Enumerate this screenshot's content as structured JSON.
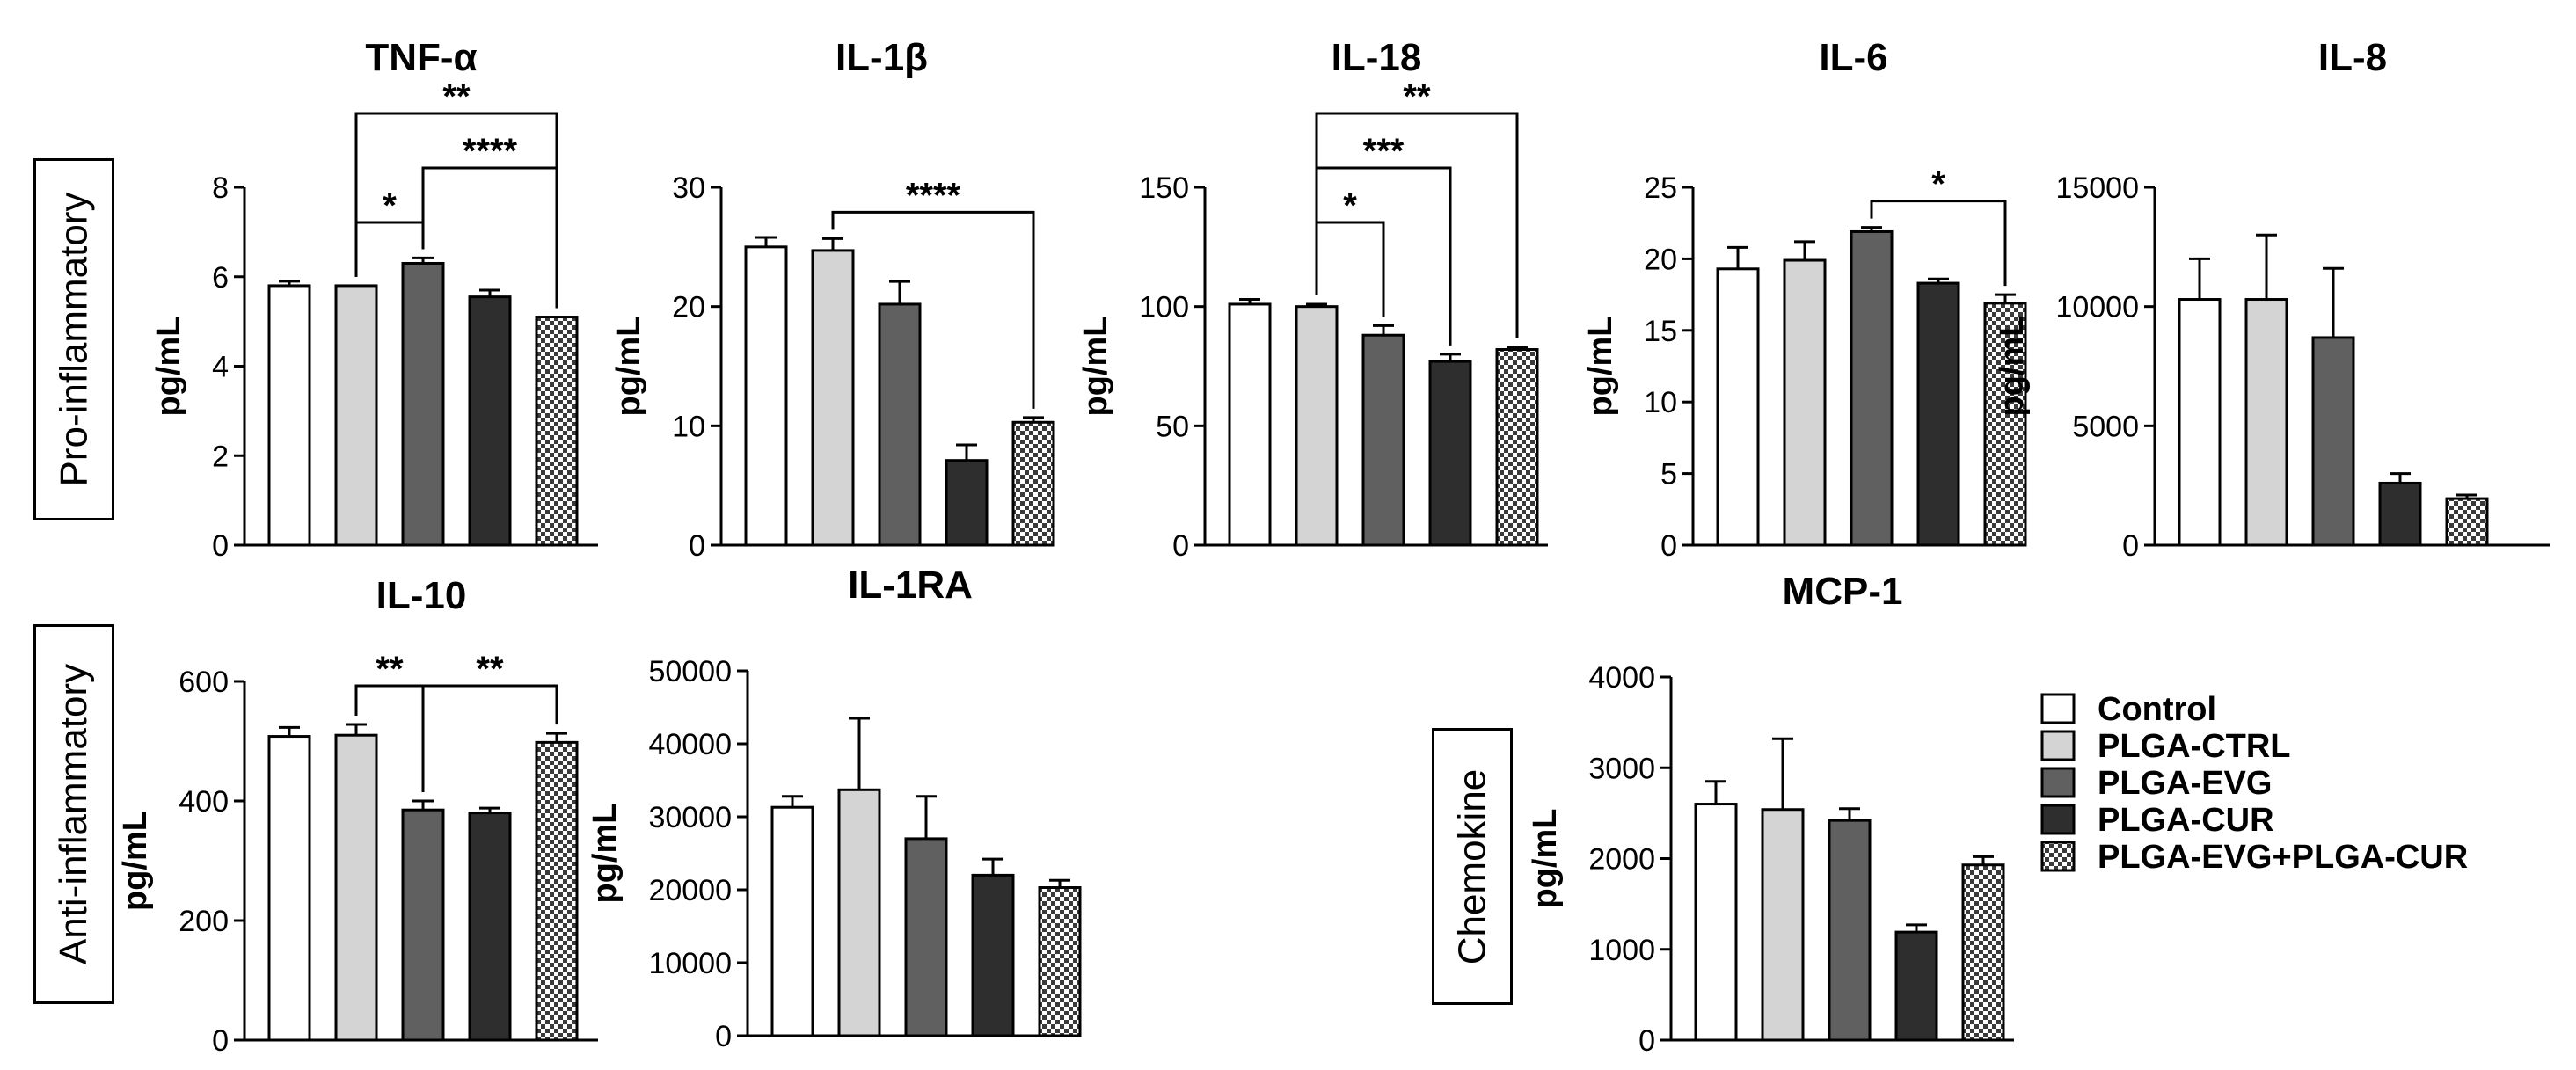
{
  "figure": {
    "row_labels": {
      "pro": "Pro-inflammatory",
      "anti": "Anti-inflammatory",
      "chemokine": "Chemokine"
    },
    "group_fills": {
      "Control": "#ffffff",
      "PLGA-CTRL": "#d4d4d4",
      "PLGA-EVG": "#606060",
      "PLGA-CUR": "#2e2e2e",
      "PLGA-EVG+PLGA-CUR": "checker"
    },
    "legend": [
      "Control",
      "PLGA-CTRL",
      "PLGA-EVG",
      "PLGA-CUR",
      "PLGA-EVG+PLGA-CUR"
    ]
  },
  "chart_data": [
    {
      "type": "bar",
      "title": "TNF-α",
      "ylabel": "pg/mL",
      "categories": [
        "Control",
        "PLGA-CTRL",
        "PLGA-EVG",
        "PLGA-CUR",
        "PLGA-EVG+PLGA-CUR"
      ],
      "values": [
        5.8,
        5.8,
        6.3,
        5.55,
        5.1
      ],
      "errors": [
        0.1,
        0,
        0.12,
        0.15,
        0
      ],
      "ylim": [
        0,
        8
      ],
      "yticks": [
        "0",
        "2",
        "4",
        "6",
        "8"
      ],
      "significance": [
        {
          "from": 1,
          "to": 2,
          "label": "*"
        },
        {
          "from": 2,
          "to": 4,
          "label": "****"
        },
        {
          "from": 1,
          "to": 4,
          "label": "**"
        }
      ]
    },
    {
      "type": "bar",
      "title": "IL-1β",
      "ylabel": "pg/mL",
      "categories": [
        "Control",
        "PLGA-CTRL",
        "PLGA-EVG",
        "PLGA-CUR",
        "PLGA-EVG+PLGA-CUR"
      ],
      "values": [
        25,
        24.7,
        20.2,
        7.1,
        10.3
      ],
      "errors": [
        0.8,
        1.0,
        1.9,
        1.3,
        0.4
      ],
      "ylim": [
        0,
        30
      ],
      "yticks": [
        "0",
        "10",
        "20",
        "30"
      ],
      "significance": [
        {
          "from": 1,
          "to": 4,
          "label": "****"
        }
      ]
    },
    {
      "type": "bar",
      "title": "IL-18",
      "ylabel": "pg/mL",
      "categories": [
        "Control",
        "PLGA-CTRL",
        "PLGA-EVG",
        "PLGA-CUR",
        "PLGA-EVG+PLGA-CUR"
      ],
      "values": [
        101,
        100,
        88,
        77,
        82
      ],
      "errors": [
        2,
        1,
        4,
        3,
        1
      ],
      "ylim": [
        0,
        150
      ],
      "yticks": [
        "0",
        "50",
        "100",
        "150"
      ],
      "significance": [
        {
          "from": 1,
          "to": 2,
          "label": "*"
        },
        {
          "from": 1,
          "to": 3,
          "label": "***"
        },
        {
          "from": 1,
          "to": 4,
          "label": "**"
        }
      ]
    },
    {
      "type": "bar",
      "title": "IL-6",
      "ylabel": "pg/mL",
      "categories": [
        "Control",
        "PLGA-CTRL",
        "PLGA-EVG",
        "PLGA-CUR",
        "PLGA-EVG+PLGA-CUR"
      ],
      "values": [
        19.3,
        19.9,
        21.9,
        18.3,
        16.9
      ],
      "errors": [
        1.5,
        1.3,
        0.3,
        0.3,
        0.6
      ],
      "ylim": [
        0,
        25
      ],
      "yticks": [
        "0",
        "5",
        "10",
        "15",
        "20",
        "25"
      ],
      "significance": [
        {
          "from": 2,
          "to": 4,
          "label": "*"
        }
      ]
    },
    {
      "type": "bar",
      "title": "IL-8",
      "ylabel": "pg/mL",
      "categories": [
        "Control",
        "PLGA-CTRL",
        "PLGA-EVG",
        "PLGA-CUR",
        "PLGA-EVG+PLGA-CUR"
      ],
      "values": [
        10300,
        10300,
        8700,
        2600,
        1950
      ],
      "errors": [
        1700,
        2700,
        2900,
        400,
        150
      ],
      "ylim": [
        0,
        15000
      ],
      "yticks": [
        "0",
        "5000",
        "10000",
        "15000"
      ],
      "significance": []
    },
    {
      "type": "bar",
      "title": "IL-10",
      "ylabel": "pg/mL",
      "categories": [
        "Control",
        "PLGA-CTRL",
        "PLGA-EVG",
        "PLGA-CUR",
        "PLGA-EVG+PLGA-CUR"
      ],
      "values": [
        508,
        510,
        385,
        380,
        498
      ],
      "errors": [
        15,
        18,
        15,
        8,
        15
      ],
      "ylim": [
        0,
        600
      ],
      "yticks": [
        "0",
        "200",
        "400",
        "600"
      ],
      "significance": [
        {
          "from": 1,
          "to": 2,
          "label": "**"
        },
        {
          "from": 2,
          "to": 4,
          "label": "**"
        }
      ]
    },
    {
      "type": "bar",
      "title": "IL-1RA",
      "ylabel": "pg/mL",
      "categories": [
        "Control",
        "PLGA-CTRL",
        "PLGA-EVG",
        "PLGA-CUR",
        "PLGA-EVG+PLGA-CUR"
      ],
      "values": [
        31300,
        33700,
        27000,
        22000,
        20300
      ],
      "errors": [
        1500,
        9800,
        5800,
        2200,
        1000
      ],
      "ylim": [
        0,
        50000
      ],
      "yticks": [
        "0",
        "10000",
        "20000",
        "30000",
        "40000",
        "50000"
      ],
      "significance": []
    },
    {
      "type": "bar",
      "title": "MCP-1",
      "ylabel": "pg/mL",
      "categories": [
        "Control",
        "PLGA-CTRL",
        "PLGA-EVG",
        "PLGA-CUR",
        "PLGA-EVG+PLGA-CUR"
      ],
      "values": [
        2600,
        2540,
        2420,
        1190,
        1930
      ],
      "errors": [
        250,
        780,
        130,
        80,
        90
      ],
      "ylim": [
        0,
        4000
      ],
      "yticks": [
        "0",
        "1000",
        "2000",
        "3000",
        "4000"
      ],
      "significance": []
    }
  ]
}
